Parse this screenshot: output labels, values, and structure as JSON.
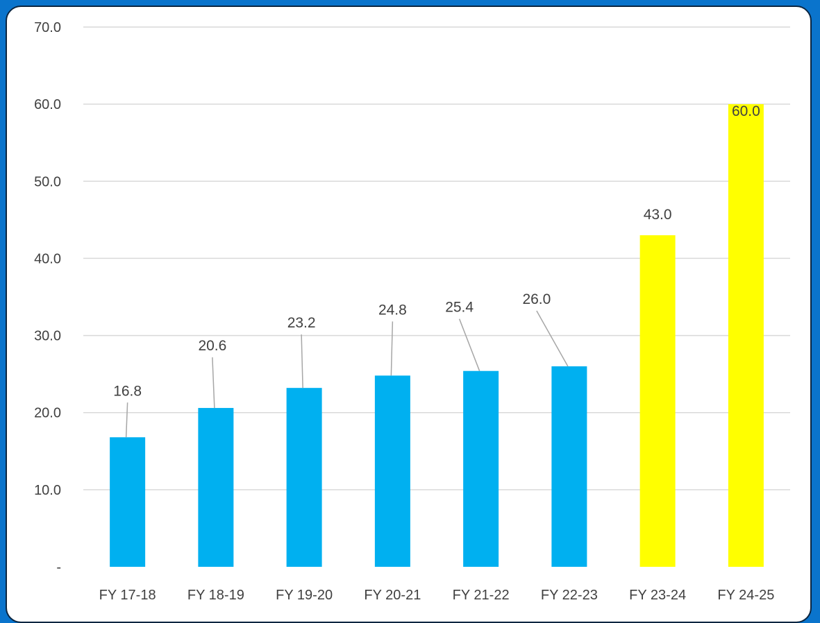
{
  "chart_data": {
    "type": "bar",
    "title": "",
    "xlabel": "",
    "ylabel": "",
    "categories": [
      "FY 17-18",
      "FY 18-19",
      "FY 19-20",
      "FY 20-21",
      "FY 21-22",
      "FY 22-23",
      "FY 23-24",
      "FY 24-25"
    ],
    "values": [
      16.8,
      20.6,
      23.2,
      24.8,
      25.4,
      26.0,
      43.0,
      60.0
    ],
    "data_labels": [
      "16.8",
      "20.6",
      "23.2",
      "24.8",
      "25.4",
      "26.0",
      "43.0",
      "60.0"
    ],
    "bar_colors": [
      "#00b0f0",
      "#00b0f0",
      "#00b0f0",
      "#00b0f0",
      "#00b0f0",
      "#00b0f0",
      "#ffff00",
      "#ffff00"
    ],
    "ylim": [
      0,
      70
    ],
    "y_ticks": [
      0,
      10,
      20,
      30,
      40,
      50,
      60,
      70
    ],
    "y_tick_labels": [
      "-",
      "10.0",
      "20.0",
      "30.0",
      "40.0",
      "50.0",
      "60.0",
      "70.0"
    ],
    "grid": true,
    "legend": "none"
  },
  "colors": {
    "background": "#0a74cc",
    "panel": "#ffffff",
    "gridline": "#d9d9d9",
    "leader_line": "#a6a6a6",
    "text": "#404040"
  }
}
